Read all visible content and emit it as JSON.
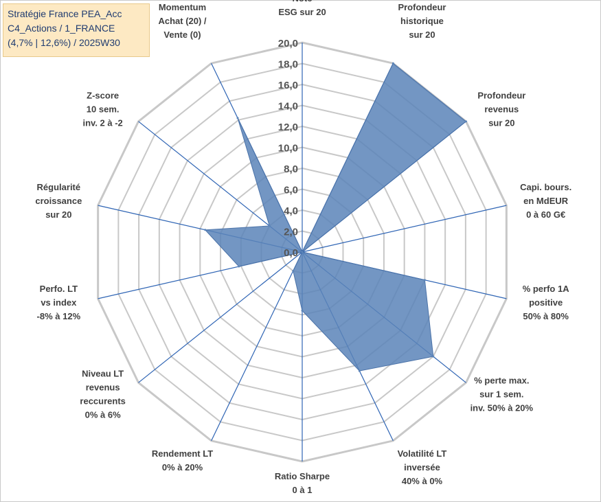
{
  "title_lines": [
    "Stratégie France PEA_Acc",
    "C4_Actions / 1_FRANCE",
    "(4,7% | 12,6%) / 2025W30"
  ],
  "chart_data": {
    "type": "radar",
    "rmin": 0,
    "rmax": 20,
    "ticks": [
      "0,0",
      "2,0",
      "4,0",
      "6,0",
      "8,0",
      "10,0",
      "12,0",
      "14,0",
      "16,0",
      "18,0",
      "20,0"
    ],
    "axes": [
      [
        "Note",
        "ESG sur 20"
      ],
      [
        "Profondeur",
        "historique",
        "sur 20"
      ],
      [
        "Profondeur",
        "revenus",
        "sur 20"
      ],
      [
        "Capi. bours.",
        "en MdEUR",
        "0 à 60 G€"
      ],
      [
        "% perfo 1A",
        "positive",
        "50% à 80%"
      ],
      [
        "% perte max.",
        "sur 1 sem.",
        "inv. 50% à 20%"
      ],
      [
        "Volatilité LT",
        "inversée",
        "40% à 0%"
      ],
      [
        "Ratio Sharpe",
        "0 à 1"
      ],
      [
        "Rendement LT",
        "0% à 20%"
      ],
      [
        "Niveau LT",
        "revenus",
        "reccurents",
        "0% à 6%"
      ],
      [
        "Perfo. LT",
        "vs index",
        "-8% à 12%"
      ],
      [
        "Régularité",
        "croissance",
        "sur 20"
      ],
      [
        "Z-score",
        "10 sem.",
        "inv. 2 à -2"
      ],
      [
        "Momentum",
        "Achat (20) /",
        "Vente (0)"
      ]
    ],
    "series": [
      {
        "values": [
          0,
          20,
          20,
          0,
          12,
          16,
          12.6,
          5.6,
          2,
          0,
          6.2,
          9.5,
          4,
          14.2
        ],
        "color": "#5b84b8"
      }
    ],
    "grid": true,
    "grid_color": "#c8c8c8",
    "spoke_color": "#2e64b4"
  }
}
